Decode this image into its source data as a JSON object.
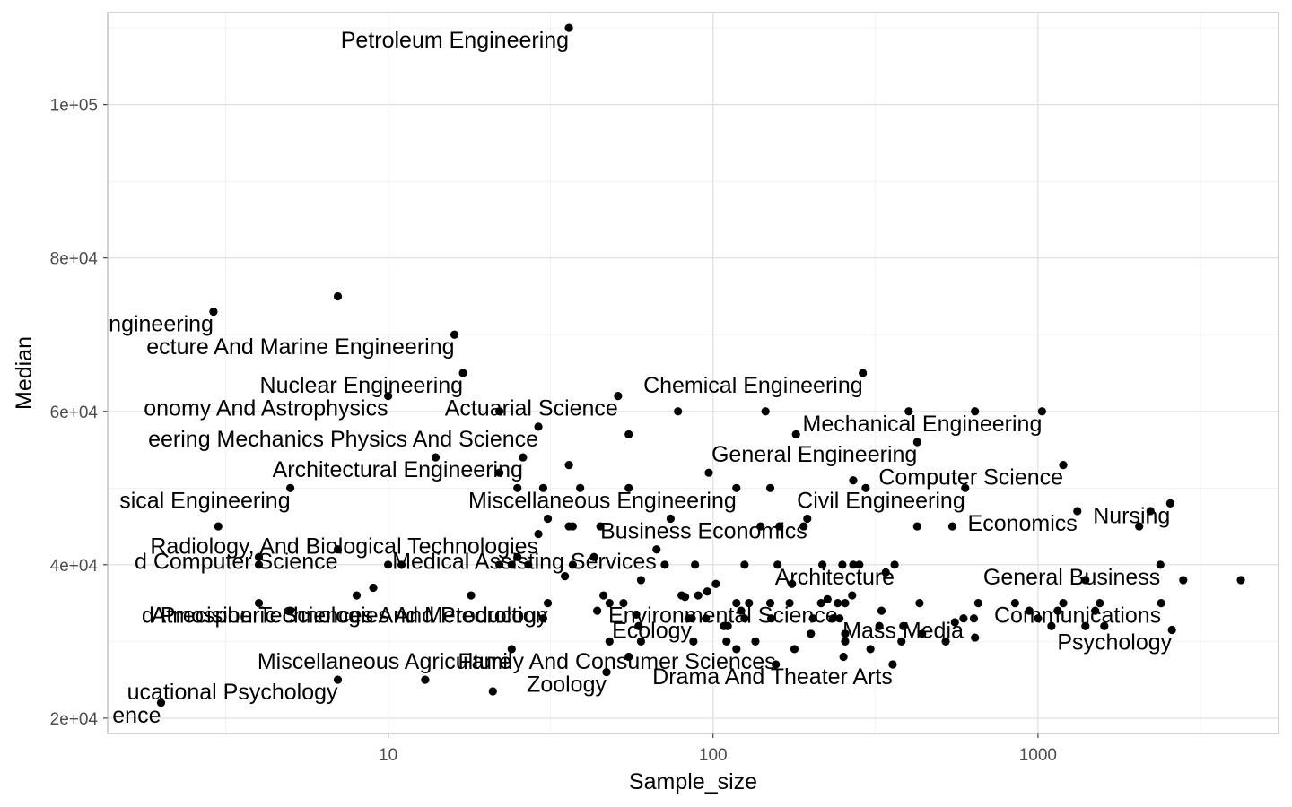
{
  "chart_data": {
    "type": "scatter",
    "title": "",
    "xlabel": "Sample_size",
    "ylabel": "Median",
    "x_scale": "log10",
    "xlim": [
      1.37,
      5500
    ],
    "ylim": [
      18000,
      112000
    ],
    "x_ticks": [
      {
        "value": 10,
        "label": "10"
      },
      {
        "value": 100,
        "label": "100"
      },
      {
        "value": 1000,
        "label": "1000"
      }
    ],
    "y_ticks": [
      {
        "value": 20000,
        "label": "2e+04"
      },
      {
        "value": 40000,
        "label": "4e+04"
      },
      {
        "value": 60000,
        "label": "6e+04"
      },
      {
        "value": 80000,
        "label": "8e+04"
      },
      {
        "value": 100000,
        "label": "1e+05"
      }
    ],
    "grid": true,
    "point_color": "#000000",
    "labels": [
      {
        "text": "Petroleum Engineering",
        "x": 36,
        "y": 110000
      },
      {
        "text": "Mineral Engineering",
        "x": 2.9,
        "y": 73000
      },
      {
        "text": "ecture And Marine Engineering",
        "x": 16,
        "y": 70000
      },
      {
        "text": "Nuclear Engineering",
        "x": 17,
        "y": 65000
      },
      {
        "text": "onomy And Astrophysics",
        "x": 10,
        "y": 62000
      },
      {
        "text": "Actuarial Science",
        "x": 51,
        "y": 62000
      },
      {
        "text": "Chemical Engineering",
        "x": 289,
        "y": 65000
      },
      {
        "text": "eering Mechanics Physics And Science",
        "x": 29,
        "y": 58000
      },
      {
        "text": "Mechanical Engineering",
        "x": 1029,
        "y": 60000
      },
      {
        "text": "General Engineering",
        "x": 425,
        "y": 56000
      },
      {
        "text": "Architectural Engineering",
        "x": 26,
        "y": 54000
      },
      {
        "text": "Computer Science",
        "x": 1196,
        "y": 53000
      },
      {
        "text": "sical Engineering",
        "x": 5,
        "y": 50000
      },
      {
        "text": "Miscellaneous Engineering",
        "x": 118,
        "y": 50000
      },
      {
        "text": "Civil Engineering",
        "x": 597,
        "y": 50000
      },
      {
        "text": "Nursing",
        "x": 2554,
        "y": 48000
      },
      {
        "text": "Economics",
        "x": 1322,
        "y": 47000
      },
      {
        "text": "Radiology, And Biological Technologies",
        "x": 29,
        "y": 44000
      },
      {
        "text": "Business Economics",
        "x": 195,
        "y": 46000
      },
      {
        "text": "d Computer Science",
        "x": 7,
        "y": 42000
      },
      {
        "text": "Medical Assisting Services",
        "x": 67,
        "y": 42000
      },
      {
        "text": "General Business",
        "x": 2380,
        "y": 40000
      },
      {
        "text": "Architecture",
        "x": 362,
        "y": 40000
      },
      {
        "text": "d Precision Technologies And Production",
        "x": 31,
        "y": 35000
      },
      {
        "text": "Atmospheric Sciences And Meteorology",
        "x": 31,
        "y": 35000
      },
      {
        "text": "Environmental Science",
        "x": 242,
        "y": 35000
      },
      {
        "text": "Communications",
        "x": 2394,
        "y": 35000
      },
      {
        "text": "Ecology",
        "x": 86,
        "y": 33000
      },
      {
        "text": "Mass Media",
        "x": 590,
        "y": 33000
      },
      {
        "text": "Psychology",
        "x": 2584,
        "y": 31500
      },
      {
        "text": "Family And Consumer Sciences",
        "x": 156,
        "y": 29000
      },
      {
        "text": "Miscellaneous Agriculture",
        "x": 24,
        "y": 29000
      },
      {
        "text": "Drama And Theater Arts",
        "x": 357,
        "y": 27000
      },
      {
        "text": "Zoology",
        "x": 47,
        "y": 26000
      },
      {
        "text": "ucational Psychology",
        "x": 7,
        "y": 25000
      },
      {
        "text": "ence",
        "x": 2,
        "y": 22000
      }
    ],
    "points": [
      {
        "x": 36,
        "y": 110000
      },
      {
        "x": 7,
        "y": 75000
      },
      {
        "x": 2.9,
        "y": 73000
      },
      {
        "x": 16,
        "y": 70000
      },
      {
        "x": 17,
        "y": 65000
      },
      {
        "x": 289,
        "y": 65000
      },
      {
        "x": 10,
        "y": 62000
      },
      {
        "x": 51,
        "y": 62000
      },
      {
        "x": 22,
        "y": 60000
      },
      {
        "x": 78,
        "y": 60000
      },
      {
        "x": 145,
        "y": 60000
      },
      {
        "x": 400,
        "y": 60000
      },
      {
        "x": 640,
        "y": 60000
      },
      {
        "x": 1029,
        "y": 60000
      },
      {
        "x": 29,
        "y": 58000
      },
      {
        "x": 55,
        "y": 57000
      },
      {
        "x": 180,
        "y": 57000
      },
      {
        "x": 425,
        "y": 56000
      },
      {
        "x": 14,
        "y": 54000
      },
      {
        "x": 26,
        "y": 54000
      },
      {
        "x": 36,
        "y": 53000
      },
      {
        "x": 1196,
        "y": 53000
      },
      {
        "x": 22,
        "y": 52000
      },
      {
        "x": 97,
        "y": 52000
      },
      {
        "x": 270,
        "y": 51000
      },
      {
        "x": 5,
        "y": 50000
      },
      {
        "x": 25,
        "y": 50000
      },
      {
        "x": 30,
        "y": 50000
      },
      {
        "x": 39,
        "y": 50000
      },
      {
        "x": 55,
        "y": 50000
      },
      {
        "x": 118,
        "y": 50000
      },
      {
        "x": 150,
        "y": 50000
      },
      {
        "x": 295,
        "y": 50000
      },
      {
        "x": 597,
        "y": 50000
      },
      {
        "x": 2554,
        "y": 48000
      },
      {
        "x": 1322,
        "y": 47000
      },
      {
        "x": 2219,
        "y": 47000
      },
      {
        "x": 31,
        "y": 46000
      },
      {
        "x": 74,
        "y": 46000
      },
      {
        "x": 195,
        "y": 46000
      },
      {
        "x": 3,
        "y": 45000
      },
      {
        "x": 36,
        "y": 45000
      },
      {
        "x": 37,
        "y": 45000
      },
      {
        "x": 45,
        "y": 45000
      },
      {
        "x": 140,
        "y": 45000
      },
      {
        "x": 160,
        "y": 45000
      },
      {
        "x": 190,
        "y": 45000
      },
      {
        "x": 425,
        "y": 45000
      },
      {
        "x": 545,
        "y": 45000
      },
      {
        "x": 2049,
        "y": 45000
      },
      {
        "x": 29,
        "y": 44000
      },
      {
        "x": 7,
        "y": 42000
      },
      {
        "x": 67,
        "y": 42000
      },
      {
        "x": 4,
        "y": 41000
      },
      {
        "x": 25,
        "y": 41000
      },
      {
        "x": 43,
        "y": 41000
      },
      {
        "x": 4,
        "y": 40000
      },
      {
        "x": 10,
        "y": 40000
      },
      {
        "x": 11,
        "y": 40000
      },
      {
        "x": 22,
        "y": 40000
      },
      {
        "x": 24,
        "y": 40000
      },
      {
        "x": 27,
        "y": 40000
      },
      {
        "x": 37,
        "y": 40000
      },
      {
        "x": 71,
        "y": 40000
      },
      {
        "x": 88,
        "y": 40000
      },
      {
        "x": 125,
        "y": 40000
      },
      {
        "x": 158,
        "y": 40000
      },
      {
        "x": 217,
        "y": 40000
      },
      {
        "x": 250,
        "y": 40000
      },
      {
        "x": 270,
        "y": 40000
      },
      {
        "x": 282,
        "y": 40000
      },
      {
        "x": 362,
        "y": 40000
      },
      {
        "x": 2380,
        "y": 40000
      },
      {
        "x": 35,
        "y": 38500
      },
      {
        "x": 60,
        "y": 38000
      },
      {
        "x": 1400,
        "y": 38000
      },
      {
        "x": 2800,
        "y": 38000
      },
      {
        "x": 4212,
        "y": 38000
      },
      {
        "x": 102,
        "y": 37500
      },
      {
        "x": 175,
        "y": 37500
      },
      {
        "x": 340,
        "y": 39000
      },
      {
        "x": 9,
        "y": 37000
      },
      {
        "x": 96,
        "y": 36500
      },
      {
        "x": 8,
        "y": 36000
      },
      {
        "x": 18,
        "y": 36000
      },
      {
        "x": 46,
        "y": 36000
      },
      {
        "x": 80,
        "y": 36000
      },
      {
        "x": 82,
        "y": 35800
      },
      {
        "x": 90,
        "y": 36000
      },
      {
        "x": 225,
        "y": 35500
      },
      {
        "x": 268,
        "y": 36000
      },
      {
        "x": 4,
        "y": 35000
      },
      {
        "x": 31,
        "y": 35000
      },
      {
        "x": 48,
        "y": 35000
      },
      {
        "x": 53,
        "y": 35000
      },
      {
        "x": 118,
        "y": 35000
      },
      {
        "x": 129,
        "y": 35000
      },
      {
        "x": 150,
        "y": 35000
      },
      {
        "x": 172,
        "y": 35000
      },
      {
        "x": 215,
        "y": 35000
      },
      {
        "x": 242,
        "y": 35000
      },
      {
        "x": 255,
        "y": 35000
      },
      {
        "x": 432,
        "y": 35000
      },
      {
        "x": 655,
        "y": 35000
      },
      {
        "x": 850,
        "y": 35000
      },
      {
        "x": 1196,
        "y": 35000
      },
      {
        "x": 1550,
        "y": 35000
      },
      {
        "x": 2394,
        "y": 35000
      },
      {
        "x": 5,
        "y": 34000
      },
      {
        "x": 44,
        "y": 34000
      },
      {
        "x": 122,
        "y": 34000
      },
      {
        "x": 330,
        "y": 34000
      },
      {
        "x": 940,
        "y": 34000
      },
      {
        "x": 1150,
        "y": 34000
      },
      {
        "x": 1500,
        "y": 34000
      },
      {
        "x": 58,
        "y": 33500
      },
      {
        "x": 30,
        "y": 33000
      },
      {
        "x": 84,
        "y": 33000
      },
      {
        "x": 86,
        "y": 33000
      },
      {
        "x": 95,
        "y": 33000
      },
      {
        "x": 125,
        "y": 33000
      },
      {
        "x": 151,
        "y": 33000
      },
      {
        "x": 203,
        "y": 33000
      },
      {
        "x": 234,
        "y": 33000
      },
      {
        "x": 245,
        "y": 33000
      },
      {
        "x": 590,
        "y": 33000
      },
      {
        "x": 635,
        "y": 33000
      },
      {
        "x": 1000,
        "y": 33000
      },
      {
        "x": 555,
        "y": 32500
      },
      {
        "x": 59,
        "y": 32000
      },
      {
        "x": 108,
        "y": 32000
      },
      {
        "x": 111,
        "y": 32000
      },
      {
        "x": 325,
        "y": 32000
      },
      {
        "x": 385,
        "y": 32000
      },
      {
        "x": 1100,
        "y": 32000
      },
      {
        "x": 1400,
        "y": 32000
      },
      {
        "x": 1600,
        "y": 32000
      },
      {
        "x": 2584,
        "y": 31500
      },
      {
        "x": 200,
        "y": 31000
      },
      {
        "x": 255,
        "y": 31000
      },
      {
        "x": 440,
        "y": 31000
      },
      {
        "x": 48,
        "y": 30000
      },
      {
        "x": 60,
        "y": 30000
      },
      {
        "x": 87,
        "y": 30000
      },
      {
        "x": 110,
        "y": 30000
      },
      {
        "x": 135,
        "y": 30000
      },
      {
        "x": 255,
        "y": 30000
      },
      {
        "x": 380,
        "y": 30000
      },
      {
        "x": 520,
        "y": 30000
      },
      {
        "x": 640,
        "y": 30500
      },
      {
        "x": 24,
        "y": 29000
      },
      {
        "x": 55,
        "y": 28000
      },
      {
        "x": 118,
        "y": 29000
      },
      {
        "x": 178,
        "y": 29000
      },
      {
        "x": 305,
        "y": 29000
      },
      {
        "x": 252,
        "y": 28000
      },
      {
        "x": 156,
        "y": 27000
      },
      {
        "x": 357,
        "y": 27000
      },
      {
        "x": 7,
        "y": 25000
      },
      {
        "x": 13,
        "y": 25000
      },
      {
        "x": 47,
        "y": 26000
      },
      {
        "x": 21,
        "y": 23500
      },
      {
        "x": 2,
        "y": 22000
      }
    ]
  }
}
